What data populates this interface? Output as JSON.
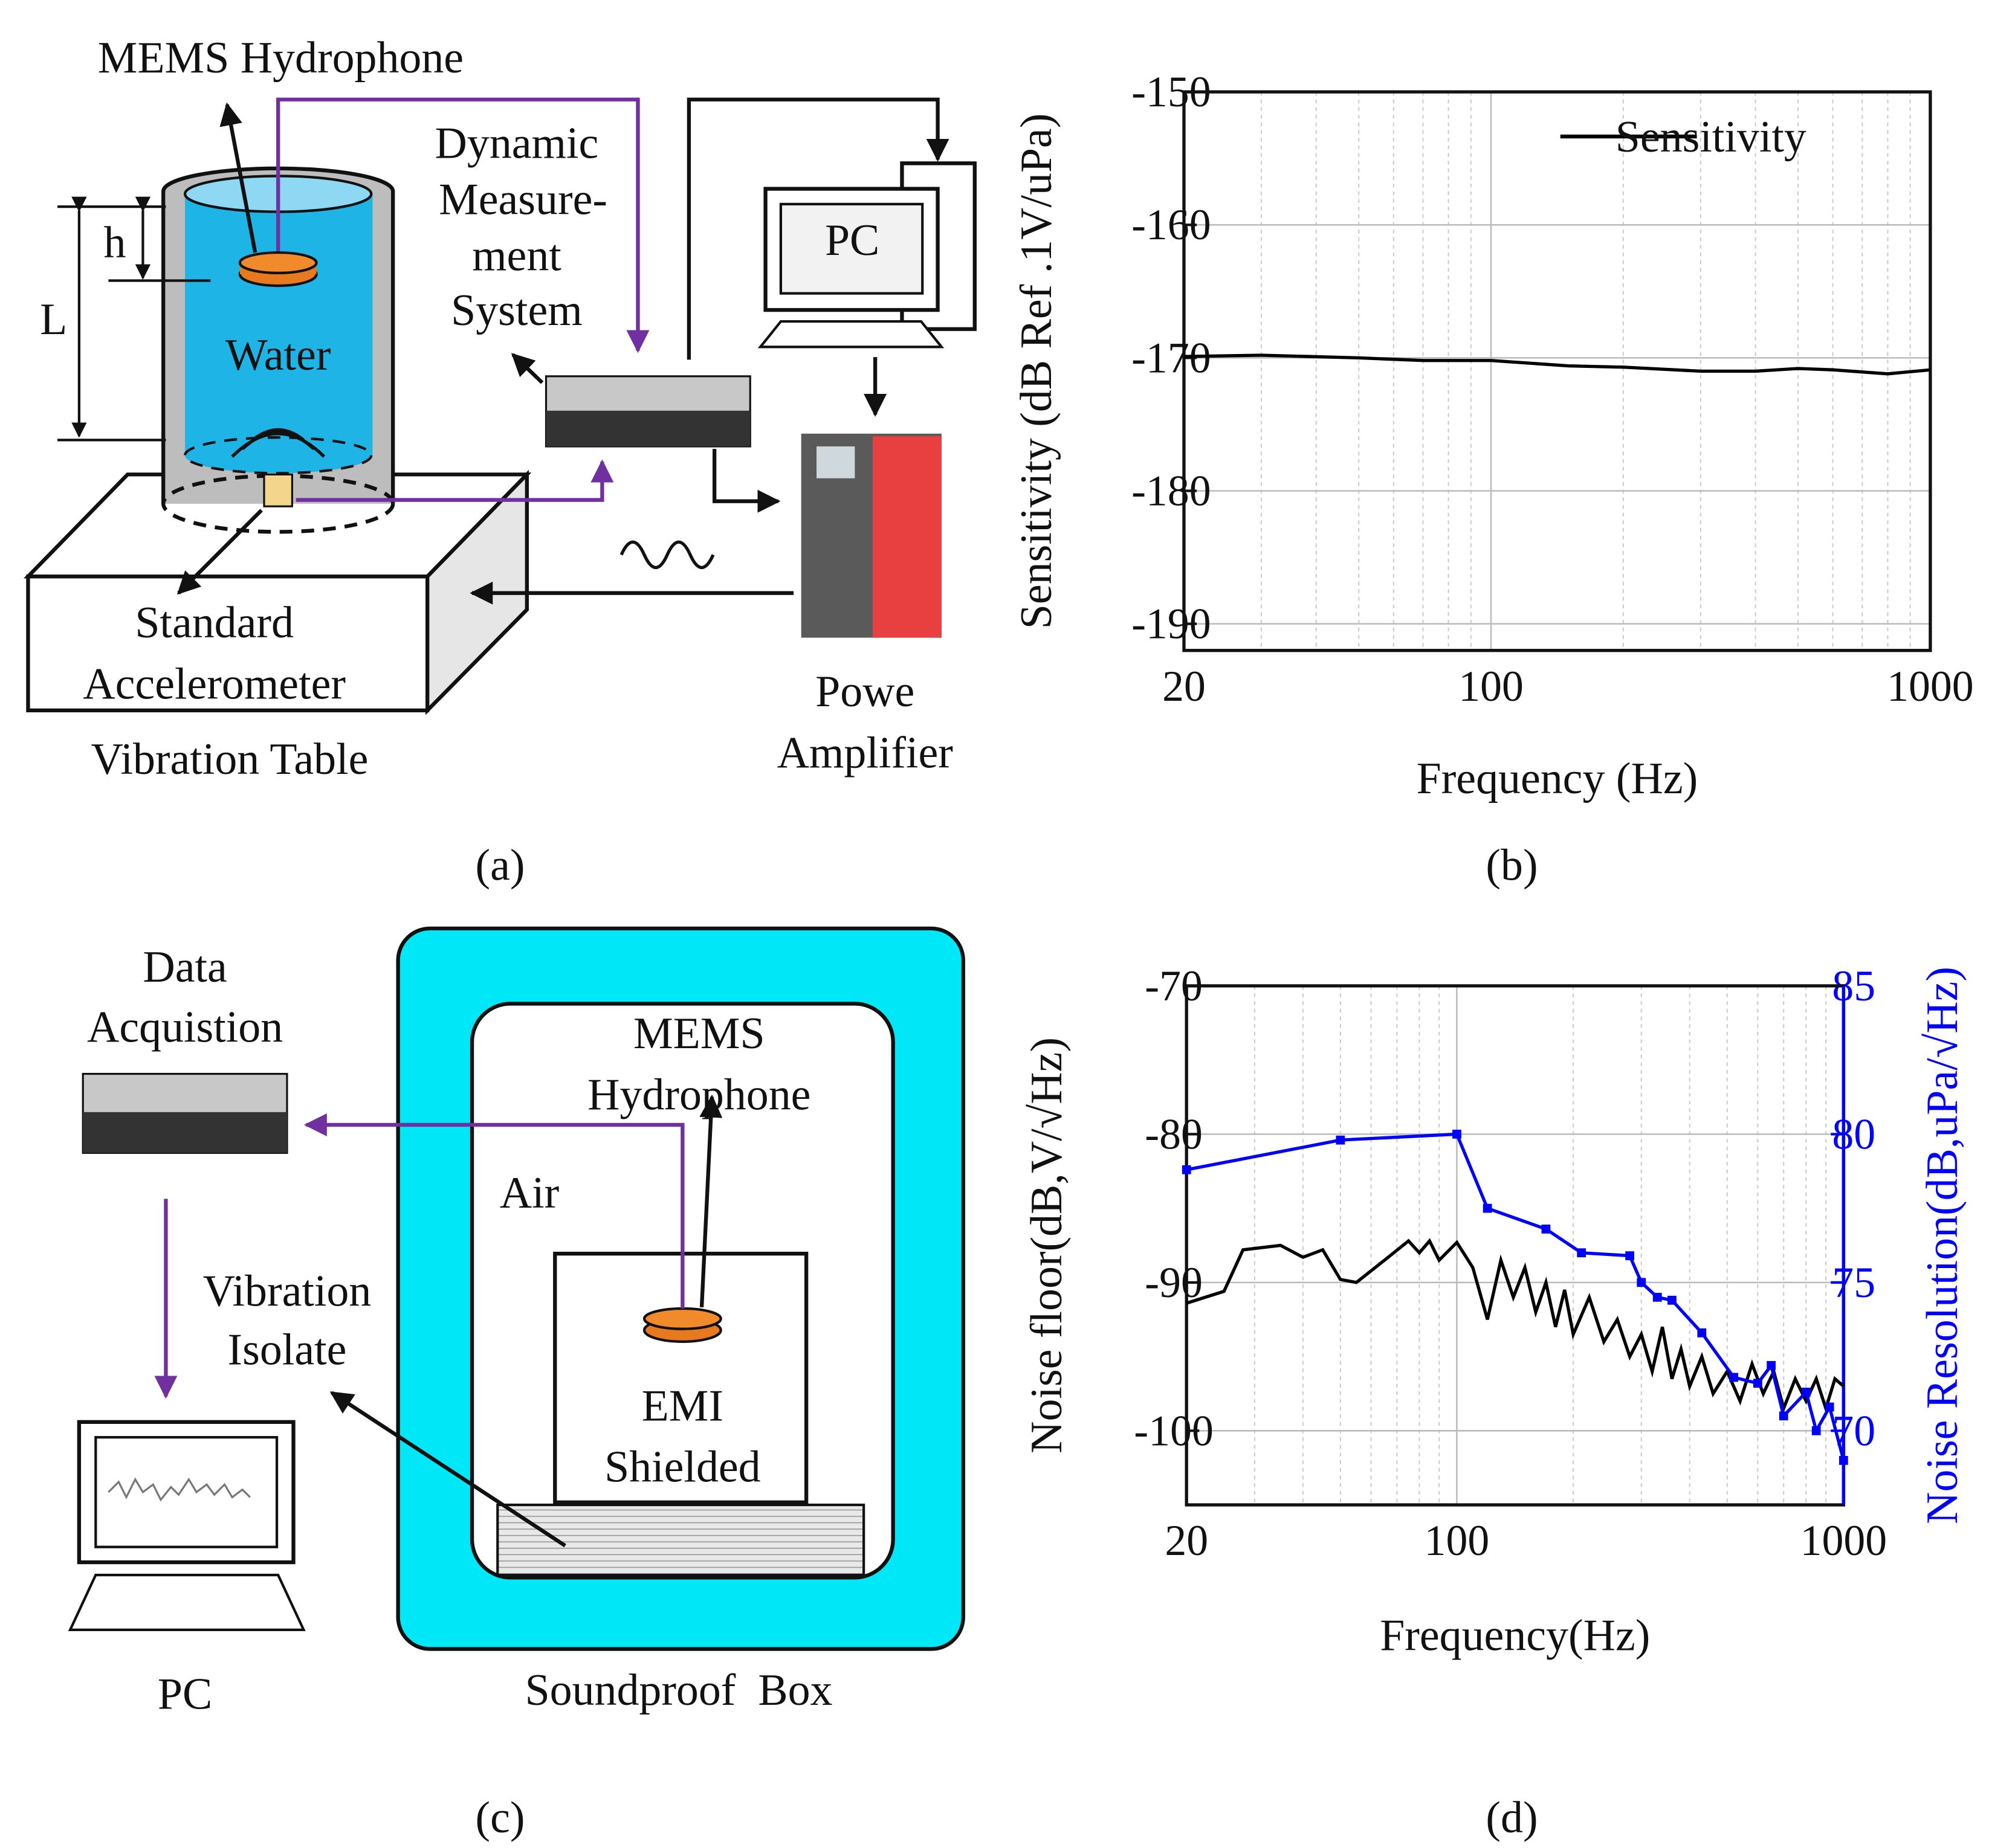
{
  "diagram_a": {
    "label": "(a)",
    "hydrophone": "MEMS Hydrophone",
    "h": "h",
    "L": "L",
    "water": "Water",
    "dms": [
      "Dynamic",
      "Measure-",
      "ment",
      "System"
    ],
    "pc": "PC",
    "accelerometer": [
      "Standard",
      "Accelerometer"
    ],
    "table": "Vibration Table",
    "amplifier": [
      "Powe",
      "Amplifier"
    ]
  },
  "diagram_c": {
    "label": "(c)",
    "daq": [
      "Data",
      "Acquistion"
    ],
    "hydrophone": [
      "MEMS",
      "Hydrophone"
    ],
    "air": "Air",
    "isolate": [
      "Vibration",
      "Isolate"
    ],
    "emi": [
      "EMI",
      "Shielded"
    ],
    "pc": "PC",
    "box": "Soundproof  Box"
  },
  "chart_data": [
    {
      "type": "line",
      "panel_label": "(b)",
      "xlabel": "Frequency (Hz)",
      "ylabel": "Sensitivity (dB Ref .1V/uPa)",
      "xscale": "log",
      "xlim": [
        20,
        1000
      ],
      "xticks": [
        20,
        100,
        1000
      ],
      "ylim": [
        -192,
        -150
      ],
      "yticks": [
        -150,
        -160,
        -170,
        -180,
        -190
      ],
      "grid": true,
      "legend": "upper right",
      "series": [
        {
          "name": "Sensitivity",
          "color": "#000000",
          "x": [
            20,
            30,
            50,
            70,
            100,
            150,
            200,
            300,
            400,
            500,
            600,
            800,
            1000
          ],
          "values": [
            -169.9,
            -169.8,
            -170.0,
            -170.2,
            -170.2,
            -170.6,
            -170.7,
            -171.0,
            -171.0,
            -170.8,
            -170.9,
            -171.2,
            -170.9
          ]
        }
      ]
    },
    {
      "type": "line",
      "panel_label": "(d)",
      "xlabel": "Frequency(Hz)",
      "ylabel": "Noise floor(dB,V/√Hz)",
      "y2label": "Noise Resolution(dB,uPa/√Hz)",
      "xscale": "log",
      "xlim": [
        20,
        1000
      ],
      "xticks": [
        20,
        100,
        1000
      ],
      "ylim": [
        -105,
        -70
      ],
      "yticks": [
        -70,
        -80,
        -90,
        -100
      ],
      "y2lim": [
        67.5,
        85
      ],
      "y2ticks": [
        85,
        80,
        75,
        70
      ],
      "y2_color": "#0000ff",
      "grid": true,
      "series": [
        {
          "color": "#000000",
          "x": [
            20,
            25,
            28,
            35,
            40,
            45,
            50,
            55,
            65,
            75,
            80,
            85,
            90,
            100,
            110,
            120,
            130,
            140,
            150,
            160,
            170,
            180,
            190,
            200,
            220,
            240,
            260,
            280,
            300,
            320,
            340,
            360,
            380,
            400,
            430,
            460,
            500,
            540,
            580,
            620,
            660,
            700,
            750,
            800,
            850,
            900,
            950,
            1000
          ],
          "values": [
            -91.4,
            -90.6,
            -87.8,
            -87.5,
            -88.3,
            -87.8,
            -89.8,
            -90,
            -88.5,
            -87.2,
            -88,
            -87.2,
            -88.5,
            -87.3,
            -89,
            -92.5,
            -88.5,
            -91,
            -89,
            -92,
            -90,
            -93,
            -90.5,
            -93.5,
            -91,
            -94,
            -92.5,
            -95,
            -93.5,
            -96,
            -93,
            -96.5,
            -94.5,
            -97,
            -95,
            -97.5,
            -96,
            -98,
            -95.5,
            -97.5,
            -96,
            -98.5,
            -96.5,
            -98,
            -96.5,
            -98.5,
            -96.5,
            -97
          ]
        },
        {
          "color": "#0000ff",
          "axis": "y2",
          "markers": true,
          "x": [
            20,
            50,
            100,
            120,
            170,
            210,
            280,
            300,
            330,
            360,
            430,
            520,
            600,
            650,
            700,
            800,
            850,
            920,
            1000
          ],
          "values": [
            78.8,
            79.8,
            80,
            77.5,
            76.8,
            76,
            75.9,
            75,
            74.5,
            74.4,
            73.3,
            71.8,
            71.6,
            72.2,
            70.5,
            71.3,
            70,
            70.8,
            69
          ]
        }
      ]
    }
  ]
}
